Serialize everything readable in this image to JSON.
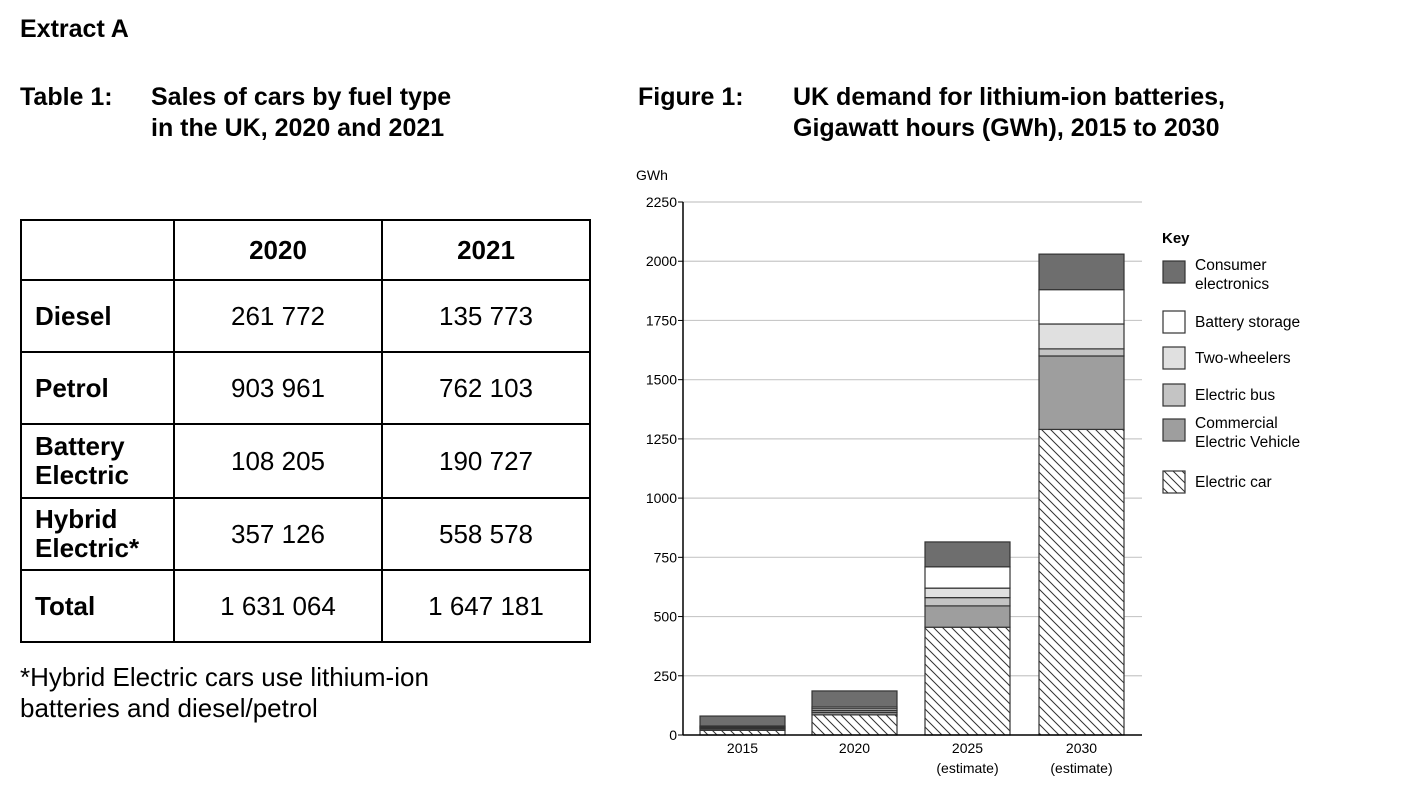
{
  "extract_title": "Extract A",
  "table": {
    "label": "Table 1:",
    "title_line1": "Sales of cars by fuel type",
    "title_line2": "in the UK, 2020 and 2021",
    "columns": [
      "",
      "2020",
      "2021"
    ],
    "rows": [
      {
        "label": "Diesel",
        "values": [
          "261 772",
          "135 773"
        ]
      },
      {
        "label": "Petrol",
        "values": [
          "903 961",
          "762 103"
        ]
      },
      {
        "label": "Battery Electric",
        "values": [
          "108 205",
          "190 727"
        ]
      },
      {
        "label": "Hybrid Electric*",
        "values": [
          "357 126",
          "558 578"
        ]
      },
      {
        "label": "Total",
        "values": [
          "1 631 064",
          "1 647 181"
        ]
      }
    ],
    "footnote": "*Hybrid Electric cars use lithium-ion batteries and diesel/petrol"
  },
  "chart_data": {
    "type": "bar",
    "stacked": true,
    "label": "Figure 1:",
    "title_line1": "UK demand for lithium-ion batteries,",
    "title_line2": "Gigawatt hours (GWh), 2015 to 2030",
    "ylabel": "GWh",
    "ylim": [
      0,
      2250
    ],
    "yticks": [
      0,
      250,
      500,
      750,
      1000,
      1250,
      1500,
      1750,
      2000,
      2250
    ],
    "grid": true,
    "categories": [
      [
        "2015",
        ""
      ],
      [
        "2020",
        ""
      ],
      [
        "2025",
        "(estimate)"
      ],
      [
        "2030",
        "(estimate)"
      ]
    ],
    "legend_title": "Key",
    "legend_position": "right",
    "series": [
      {
        "name": "Electric car",
        "values": [
          20,
          85,
          455,
          1290
        ],
        "color": "#ffffff",
        "hatched": true
      },
      {
        "name": "Commercial Electric Vehicle",
        "values": [
          6,
          10,
          90,
          310
        ],
        "color": "#9e9e9e"
      },
      {
        "name": "Electric bus",
        "values": [
          4,
          8,
          35,
          30
        ],
        "color": "#c4c4c4"
      },
      {
        "name": "Two-wheelers",
        "values": [
          4,
          8,
          40,
          105
        ],
        "color": "#e0e0e0"
      },
      {
        "name": "Battery storage",
        "values": [
          4,
          7,
          90,
          145
        ],
        "color": "#ffffff"
      },
      {
        "name": "Consumer electronics",
        "values": [
          42,
          68,
          105,
          150
        ],
        "color": "#6e6e6e"
      }
    ],
    "legend_labels": [
      [
        "Consumer",
        "electronics"
      ],
      [
        "Battery storage"
      ],
      [
        "Two-wheelers"
      ],
      [
        "Electric bus"
      ],
      [
        "Commercial",
        "Electric Vehicle"
      ],
      [
        "Electric car"
      ]
    ]
  }
}
